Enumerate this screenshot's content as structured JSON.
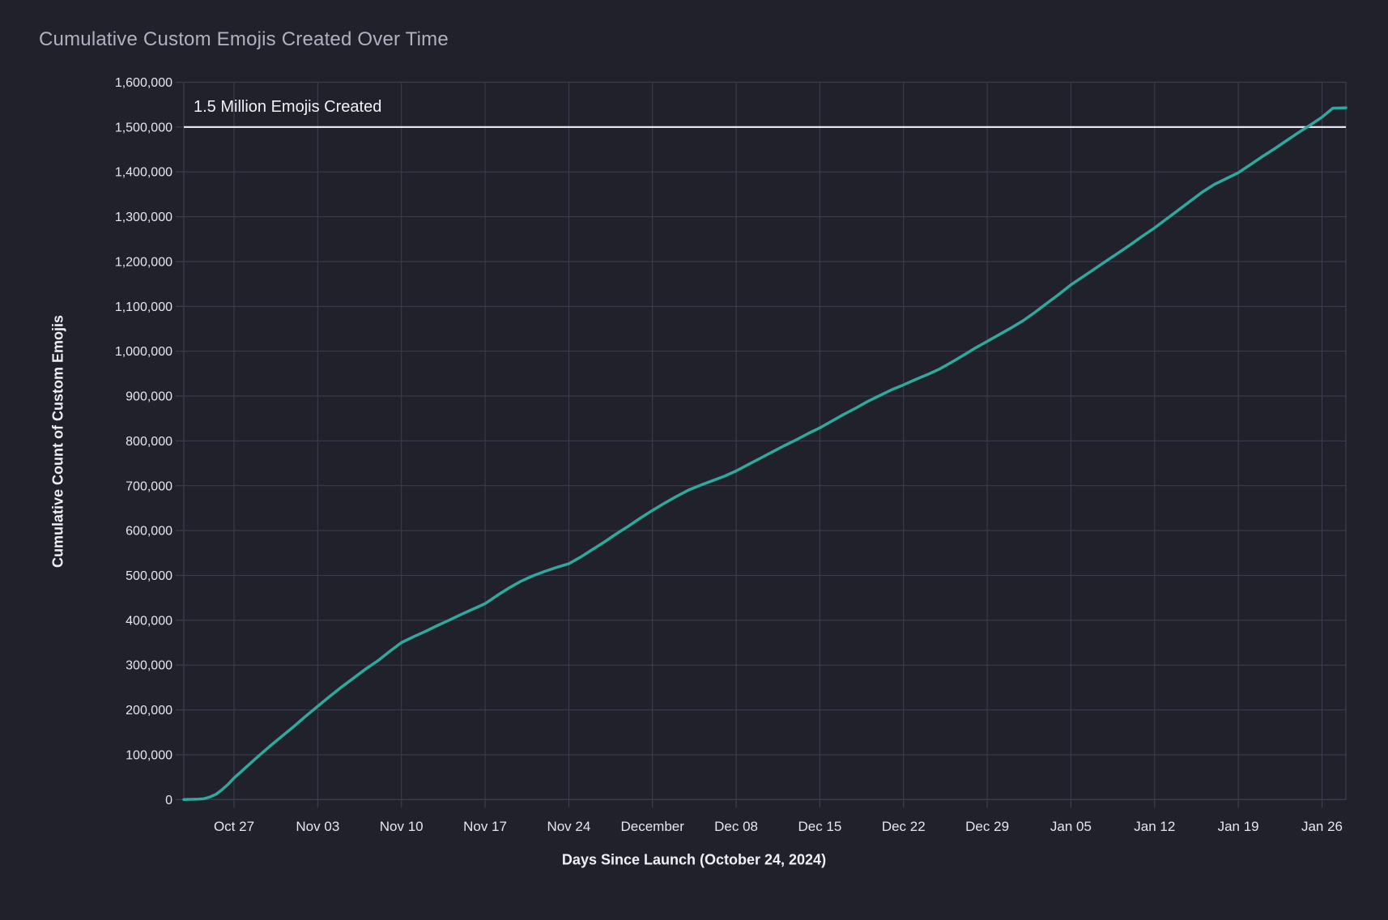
{
  "colors": {
    "background": "#20212b",
    "grid": "#3d3f51",
    "plot_border": "#3d3f51",
    "line_accent": "#2fa89d",
    "reference_line": "#e4e4ee",
    "title_text": "#aeb1c0",
    "tick_label_text": "#e6e7ee",
    "axis_title_text": "#eef0f6",
    "annotation_text": "#f1f2f7"
  },
  "title": "Cumulative Custom Emojis Created Over Time",
  "annotation": "1.5 Million Emojis Created",
  "chart_data": {
    "type": "line",
    "title": "Cumulative Custom Emojis Created Over Time",
    "xlabel": "Days Since Launch (October 24, 2024)",
    "ylabel": "Cumulative Count of Custom Emojis",
    "grid": true,
    "legend": "none",
    "x_unit": "days since launch (Oct 24, 2024)",
    "x_range_days": [
      -1.2,
      96
    ],
    "ylim": [
      0,
      1600000
    ],
    "y_tick_step": 100000,
    "x_ticks": [
      {
        "day": 3,
        "label": "Oct 27"
      },
      {
        "day": 10,
        "label": "Nov 03"
      },
      {
        "day": 17,
        "label": "Nov 10"
      },
      {
        "day": 24,
        "label": "Nov 17"
      },
      {
        "day": 31,
        "label": "Nov 24"
      },
      {
        "day": 38,
        "label": "December"
      },
      {
        "day": 45,
        "label": "Dec 08"
      },
      {
        "day": 52,
        "label": "Dec 15"
      },
      {
        "day": 59,
        "label": "Dec 22"
      },
      {
        "day": 66,
        "label": "Dec 29"
      },
      {
        "day": 73,
        "label": "Jan 05"
      },
      {
        "day": 80,
        "label": "Jan 12"
      },
      {
        "day": 87,
        "label": "Jan 19"
      },
      {
        "day": 94,
        "label": "Jan 26"
      }
    ],
    "y_ticks": [
      {
        "value": 0,
        "label": "0"
      },
      {
        "value": 100000,
        "label": "100,000"
      },
      {
        "value": 200000,
        "label": "200,000"
      },
      {
        "value": 300000,
        "label": "300,000"
      },
      {
        "value": 400000,
        "label": "400,000"
      },
      {
        "value": 500000,
        "label": "500,000"
      },
      {
        "value": 600000,
        "label": "600,000"
      },
      {
        "value": 700000,
        "label": "700,000"
      },
      {
        "value": 800000,
        "label": "800,000"
      },
      {
        "value": 900000,
        "label": "900,000"
      },
      {
        "value": 1000000,
        "label": "1,000,000"
      },
      {
        "value": 1100000,
        "label": "1,100,000"
      },
      {
        "value": 1200000,
        "label": "1,200,000"
      },
      {
        "value": 1300000,
        "label": "1,300,000"
      },
      {
        "value": 1400000,
        "label": "1,400,000"
      },
      {
        "value": 1500000,
        "label": "1,500,000"
      },
      {
        "value": 1600000,
        "label": "1,600,000"
      }
    ],
    "reference_line": {
      "y": 1500000,
      "label": "1.5 Million Emojis Created"
    },
    "series": [
      {
        "name": "Cumulative Custom Emojis",
        "color": "#2fa89d",
        "points": [
          [
            -1.2,
            0
          ],
          [
            0,
            1000
          ],
          [
            0.5,
            2000
          ],
          [
            1,
            6000
          ],
          [
            1.5,
            12000
          ],
          [
            2,
            22000
          ],
          [
            2.5,
            34000
          ],
          [
            3,
            48000
          ],
          [
            4,
            72000
          ],
          [
            5,
            96000
          ],
          [
            6,
            119000
          ],
          [
            7,
            141000
          ],
          [
            8,
            163000
          ],
          [
            9,
            186000
          ],
          [
            10,
            208000
          ],
          [
            11,
            230000
          ],
          [
            12,
            251000
          ],
          [
            13,
            271000
          ],
          [
            14,
            291000
          ],
          [
            15,
            309000
          ],
          [
            16,
            330000
          ],
          [
            17,
            350000
          ],
          [
            18,
            363000
          ],
          [
            19,
            375000
          ],
          [
            20,
            388000
          ],
          [
            21,
            400000
          ],
          [
            22,
            413000
          ],
          [
            23,
            425000
          ],
          [
            24,
            437000
          ],
          [
            25,
            455000
          ],
          [
            26,
            472000
          ],
          [
            27,
            487000
          ],
          [
            28,
            499000
          ],
          [
            29,
            509000
          ],
          [
            30,
            518000
          ],
          [
            31,
            526000
          ],
          [
            32,
            541000
          ],
          [
            33,
            558000
          ],
          [
            34,
            575000
          ],
          [
            35,
            593000
          ],
          [
            36,
            610000
          ],
          [
            37,
            628000
          ],
          [
            38,
            645000
          ],
          [
            39,
            661000
          ],
          [
            40,
            676000
          ],
          [
            41,
            690000
          ],
          [
            42,
            701000
          ],
          [
            43,
            711000
          ],
          [
            44,
            721000
          ],
          [
            45,
            733000
          ],
          [
            46,
            747000
          ],
          [
            47,
            761000
          ],
          [
            48,
            775000
          ],
          [
            49,
            789000
          ],
          [
            50,
            802000
          ],
          [
            51,
            816000
          ],
          [
            52,
            829000
          ],
          [
            53,
            844000
          ],
          [
            54,
            859000
          ],
          [
            55,
            873000
          ],
          [
            56,
            888000
          ],
          [
            57,
            901000
          ],
          [
            58,
            914000
          ],
          [
            59,
            925000
          ],
          [
            60,
            937000
          ],
          [
            61,
            948000
          ],
          [
            62,
            960000
          ],
          [
            63,
            975000
          ],
          [
            64,
            991000
          ],
          [
            65,
            1007000
          ],
          [
            66,
            1022000
          ],
          [
            67,
            1037000
          ],
          [
            68,
            1052000
          ],
          [
            69,
            1068000
          ],
          [
            70,
            1087000
          ],
          [
            71,
            1107000
          ],
          [
            72,
            1127000
          ],
          [
            73,
            1148000
          ],
          [
            74,
            1166000
          ],
          [
            75,
            1184000
          ],
          [
            76,
            1202000
          ],
          [
            77,
            1220000
          ],
          [
            78,
            1238000
          ],
          [
            79,
            1257000
          ],
          [
            80,
            1275000
          ],
          [
            81,
            1295000
          ],
          [
            82,
            1315000
          ],
          [
            83,
            1335000
          ],
          [
            84,
            1355000
          ],
          [
            85,
            1372000
          ],
          [
            86,
            1385000
          ],
          [
            87,
            1398000
          ],
          [
            88,
            1416000
          ],
          [
            89,
            1434000
          ],
          [
            90,
            1451000
          ],
          [
            91,
            1469000
          ],
          [
            92,
            1487000
          ],
          [
            93,
            1504000
          ],
          [
            94,
            1522000
          ],
          [
            94.9,
            1542000
          ],
          [
            96,
            1543000
          ]
        ]
      }
    ]
  }
}
